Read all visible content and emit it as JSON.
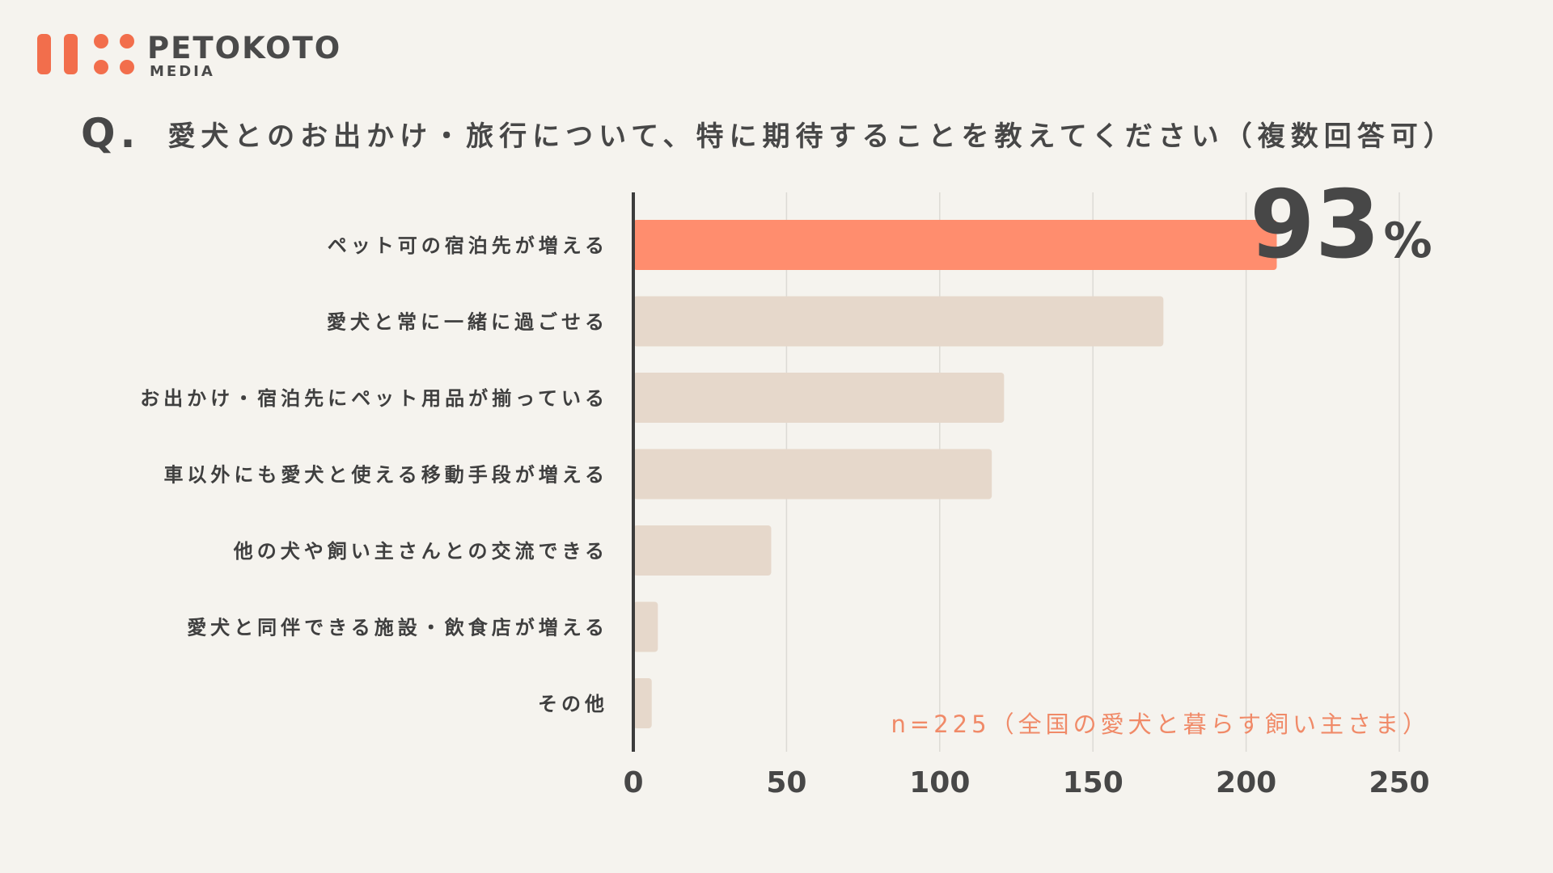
{
  "brand": {
    "name": "PETOKOTO",
    "sub": "MEDIA",
    "color": "#f26e4c"
  },
  "title": {
    "prefix": "Q.",
    "text": "愛犬とのお出かけ・旅行について、特に期待することを教えてください（複数回答可）"
  },
  "highlight": {
    "number": "93",
    "unit": "%"
  },
  "sample_note": "n=225（全国の愛犬と暮らす飼い主さま）",
  "chart_data": {
    "type": "bar",
    "orientation": "horizontal",
    "categories": [
      "ペット可の宿泊先が増える",
      "愛犬と常に一緒に過ごせる",
      "お出かけ・宿泊先にペット用品が揃っている",
      "車以外にも愛犬と使える移動手段が増える",
      "他の犬や飼い主さんとの交流できる",
      "愛犬と同伴できる施設・飲食店が増える",
      "その他"
    ],
    "values": [
      210,
      173,
      121,
      117,
      45,
      8,
      6
    ],
    "xlim": [
      0,
      250
    ],
    "xticks": [
      0,
      50,
      100,
      150,
      200,
      250
    ],
    "grid": true,
    "colors": {
      "highlight": "#ff8d6e",
      "bar": "#e6d8cb",
      "grid": "#dcdad5",
      "axis": "#3c3c3c"
    },
    "highlight_index": 0
  }
}
